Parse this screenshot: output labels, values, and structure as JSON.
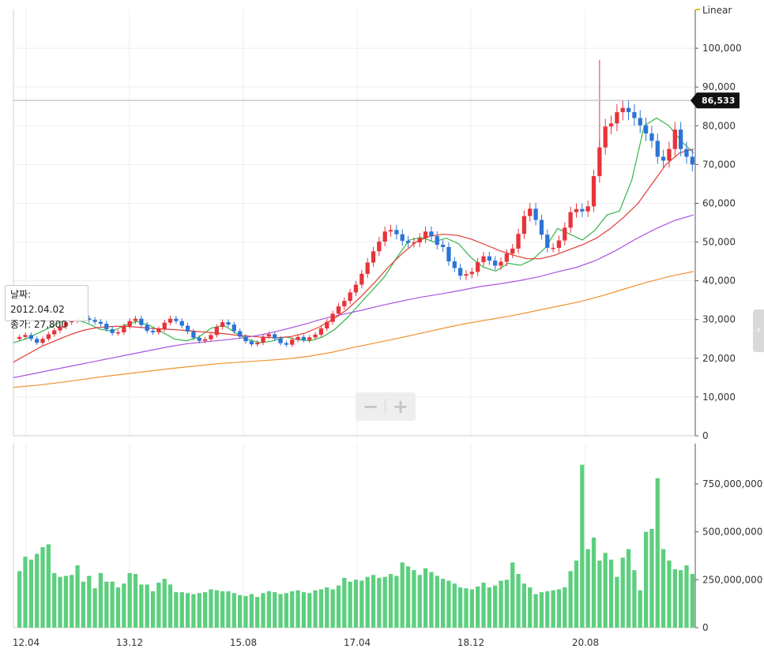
{
  "scale_type": "Linear",
  "price_axis": {
    "range": [
      0,
      110000
    ],
    "ticks": [
      "100,000",
      "90,000",
      "80,000",
      "70,000",
      "60,000",
      "50,000",
      "40,000",
      "30,000",
      "20,000",
      "10,000",
      "0"
    ]
  },
  "volume_axis": {
    "range": [
      0,
      960000000
    ],
    "ticks": [
      "750,000,000",
      "500,000,000",
      "250,000,000",
      "0"
    ]
  },
  "date_ticks": [
    "12.04",
    "13.12",
    "15.08",
    "17.04",
    "18.12",
    "20.08"
  ],
  "current_price": {
    "label": "86,533",
    "value": 86533
  },
  "tooltip": {
    "date_line": "날짜: 2012.04.02",
    "close_line": "종가: 27,800"
  },
  "zoom": {
    "minus": "−",
    "plus": "+"
  },
  "side_tab": "‹",
  "colors": {
    "up": "#e8333a",
    "down": "#2b74d6",
    "ma5": "#33b44a",
    "ma20": "#e23b32",
    "ma60": "#a855e0",
    "ma120": "#f0922e",
    "volume": "#5ccf7e",
    "grid": "#eeeeee",
    "axis": "#555555"
  },
  "chart_data": {
    "type": "candlestick",
    "x_range": [
      "2012.04",
      "2021.12"
    ],
    "candle_closes": [
      25500,
      26000,
      25000,
      24000,
      25000,
      26200,
      27200,
      28200,
      29300,
      29800,
      30300,
      30300,
      29900,
      29400,
      28900,
      27500,
      26500,
      26700,
      28300,
      29600,
      30200,
      28600,
      27100,
      26700,
      27500,
      29200,
      30200,
      29600,
      28400,
      26900,
      25300,
      24500,
      24900,
      26000,
      28100,
      29300,
      28700,
      27000,
      25600,
      24400,
      23600,
      24000,
      25600,
      26200,
      25100,
      23900,
      23500,
      24800,
      25500,
      24700,
      25400,
      26100,
      27700,
      29400,
      31500,
      33400,
      34800,
      37000,
      39000,
      41800,
      44700,
      47600,
      50100,
      52700,
      53100,
      52000,
      50300,
      49800,
      49900,
      51000,
      52700,
      51500,
      49300,
      48700,
      45000,
      43300,
      41300,
      41700,
      42300,
      44800,
      46300,
      45200,
      43900,
      44900,
      47000,
      48300,
      52100,
      56700,
      58600,
      55700,
      51900,
      48500,
      48500,
      50400,
      53700,
      57700,
      58500,
      57900,
      59200,
      67000,
      74400,
      79800,
      80600,
      83500,
      84600,
      83500,
      82000,
      80100,
      78000,
      76100,
      72000,
      71000,
      74000,
      79000,
      74000,
      72000,
      70000
    ],
    "volume_values": [
      295000000,
      370000000,
      355000000,
      385000000,
      420000000,
      435000000,
      285000000,
      265000000,
      270000000,
      275000000,
      325000000,
      240000000,
      270000000,
      205000000,
      285000000,
      240000000,
      240000000,
      210000000,
      230000000,
      285000000,
      280000000,
      225000000,
      225000000,
      190000000,
      235000000,
      255000000,
      225000000,
      185000000,
      185000000,
      180000000,
      175000000,
      180000000,
      185000000,
      200000000,
      195000000,
      190000000,
      190000000,
      180000000,
      170000000,
      165000000,
      175000000,
      160000000,
      180000000,
      190000000,
      185000000,
      175000000,
      180000000,
      190000000,
      195000000,
      185000000,
      180000000,
      195000000,
      200000000,
      210000000,
      200000000,
      220000000,
      260000000,
      240000000,
      250000000,
      245000000,
      265000000,
      275000000,
      260000000,
      265000000,
      280000000,
      270000000,
      340000000,
      320000000,
      300000000,
      275000000,
      310000000,
      290000000,
      270000000,
      255000000,
      245000000,
      230000000,
      210000000,
      205000000,
      200000000,
      215000000,
      235000000,
      210000000,
      220000000,
      245000000,
      250000000,
      340000000,
      280000000,
      230000000,
      210000000,
      175000000,
      185000000,
      190000000,
      195000000,
      200000000,
      210000000,
      295000000,
      350000000,
      850000000,
      410000000,
      470000000,
      350000000,
      390000000,
      355000000,
      265000000,
      365000000,
      410000000,
      300000000,
      195000000,
      500000000,
      515000000,
      780000000,
      410000000,
      350000000,
      305000000,
      300000000,
      325000000,
      280000000
    ],
    "ma_lines": [
      {
        "period": 5,
        "values": [
          24000,
          25000,
          26500,
          28000,
          29700,
          30000,
          29000,
          27500,
          27000,
          28500,
          29500,
          28500,
          26800,
          25000,
          24500,
          25500,
          27800,
          28500,
          26500,
          24800,
          24000,
          24500,
          25500,
          24800,
          24500,
          25500,
          27500,
          30500,
          34000,
          37500,
          41000,
          46000,
          50500,
          51200,
          50000,
          51000,
          49500,
          46000,
          43500,
          42500,
          44500,
          44000,
          45500,
          48500,
          53500,
          52000,
          50500,
          53000,
          57000,
          58000,
          66000,
          80000,
          82000,
          80000,
          76000,
          73000
        ]
      },
      {
        "period": 20,
        "values": [
          19000,
          21000,
          23000,
          24500,
          26000,
          27200,
          27900,
          28200,
          28300,
          28000,
          27700,
          27500,
          27300,
          27000,
          26700,
          26400,
          26000,
          25700,
          25400,
          25300,
          25600,
          26500,
          28000,
          30000,
          32500,
          35800,
          39500,
          43500,
          47000,
          50000,
          51500,
          52000,
          51700,
          50700,
          49300,
          47800,
          46600,
          45700,
          45700,
          46600,
          48000,
          49300,
          51000,
          53500,
          56500,
          60000,
          65000,
          70000,
          73000,
          74000
        ]
      },
      {
        "period": 60,
        "values": [
          15000,
          16000,
          17000,
          18000,
          19000,
          20000,
          21000,
          22000,
          23000,
          23800,
          24300,
          24800,
          25400,
          26300,
          27500,
          28800,
          30300,
          31400,
          32500,
          33700,
          34800,
          35800,
          36600,
          37500,
          38500,
          39200,
          40000,
          41000,
          42300,
          43500,
          45300,
          47800,
          50700,
          53300,
          55500,
          57000
        ]
      },
      {
        "period": 120,
        "values": [
          12500,
          13000,
          13700,
          14500,
          15300,
          16000,
          16700,
          17400,
          18000,
          18600,
          19000,
          19400,
          19800,
          20500,
          21500,
          22800,
          24000,
          25200,
          26500,
          27800,
          29000,
          30000,
          31000,
          32200,
          33400,
          34600,
          36200,
          38000,
          39700,
          41200,
          42400
        ]
      }
    ]
  }
}
